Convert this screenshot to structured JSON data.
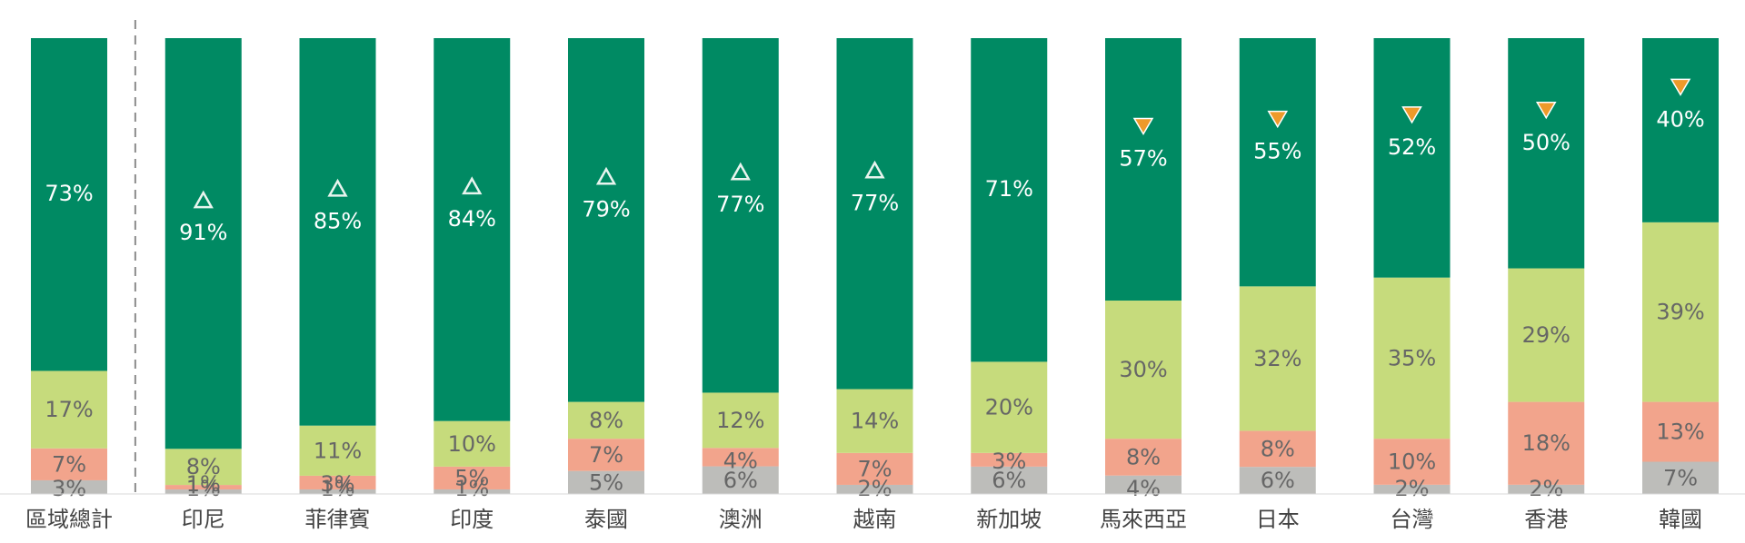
{
  "colors": {
    "green": "#008A63",
    "light_green": "#C6DB7C",
    "salmon": "#F2A48C",
    "gray": "#BDBDBA",
    "orange": "#EE9A2A",
    "label_white": "#ffffff",
    "label_dark": "#666666",
    "axis_text": "#444444"
  },
  "chart_data": {
    "type": "bar",
    "stacked": true,
    "normalized_percent": true,
    "categories": [
      "區域總計",
      "印尼",
      "菲律賓",
      "印度",
      "泰國",
      "澳洲",
      "越南",
      "新加坡",
      "馬來西亞",
      "日本",
      "台灣",
      "香港",
      "韓國"
    ],
    "series": [
      {
        "color": "#BDBDBA",
        "values": [
          3,
          1,
          1,
          1,
          5,
          6,
          2,
          6,
          4,
          6,
          2,
          2,
          7
        ]
      },
      {
        "color": "#F2A48C",
        "values": [
          7,
          1,
          3,
          5,
          7,
          4,
          7,
          3,
          8,
          8,
          10,
          18,
          13
        ]
      },
      {
        "color": "#C6DB7C",
        "values": [
          17,
          8,
          11,
          10,
          8,
          12,
          14,
          20,
          30,
          32,
          35,
          29,
          39
        ]
      },
      {
        "color": "#008A63",
        "values": [
          73,
          91,
          85,
          84,
          79,
          77,
          77,
          71,
          57,
          55,
          52,
          50,
          40
        ]
      }
    ],
    "markers": [
      "",
      "up",
      "up",
      "up",
      "up",
      "up",
      "up",
      "",
      "down",
      "down",
      "down",
      "down",
      "down"
    ],
    "divider_after_index": 0,
    "legend": "none",
    "grid": false
  }
}
